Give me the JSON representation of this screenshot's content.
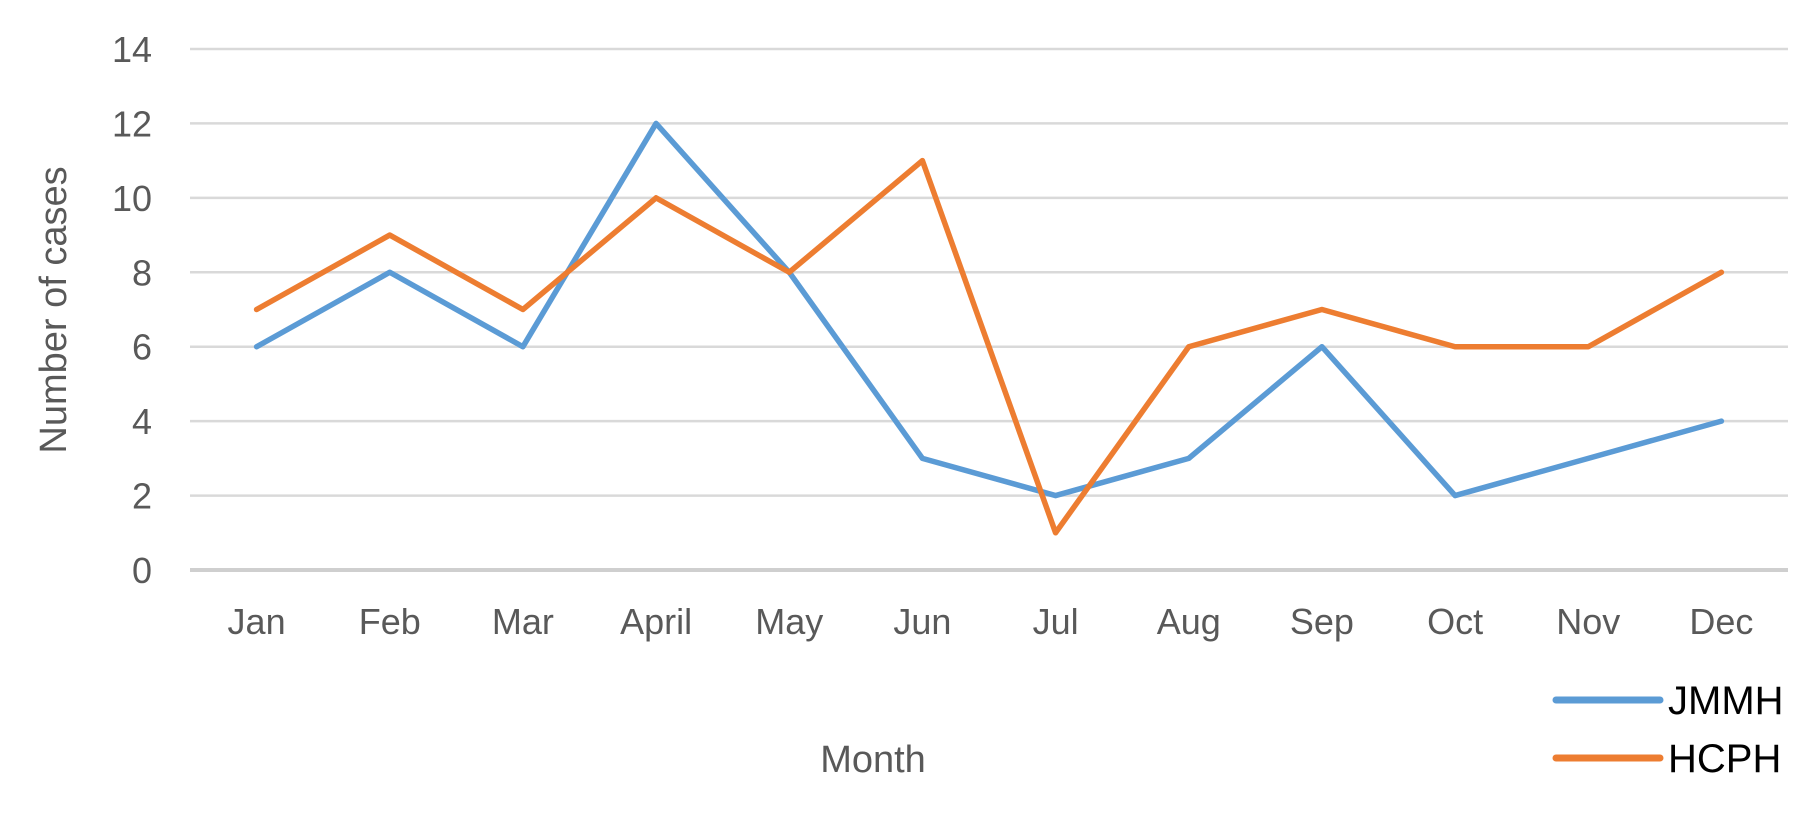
{
  "chart_data": {
    "type": "line",
    "title": "",
    "xlabel": "Month",
    "ylabel": "Number of cases",
    "categories": [
      "Jan",
      "Feb",
      "Mar",
      "April",
      "May",
      "Jun",
      "Jul",
      "Aug",
      "Sep",
      "Oct",
      "Nov",
      "Dec"
    ],
    "series": [
      {
        "name": "JMMH",
        "color": "#5B9BD5",
        "values": [
          6,
          8,
          6,
          12,
          8,
          3,
          2,
          3,
          6,
          2,
          3,
          4
        ]
      },
      {
        "name": "HCPH",
        "color": "#ED7D31",
        "values": [
          7,
          9,
          7,
          10,
          8,
          11,
          1,
          6,
          7,
          6,
          6,
          8
        ]
      }
    ],
    "yticks": [
      0,
      2,
      4,
      6,
      8,
      10,
      12,
      14
    ],
    "ylim": [
      0,
      14
    ],
    "grid": "horizontal-only",
    "legend_position": "bottom-right",
    "colors": {
      "gridline": "#D9D9D9",
      "axis_line": "#CFCFCF",
      "tick_label": "#595959",
      "axis_title": "#595959",
      "legend_text": "#000000",
      "background": "#FFFFFF"
    }
  }
}
